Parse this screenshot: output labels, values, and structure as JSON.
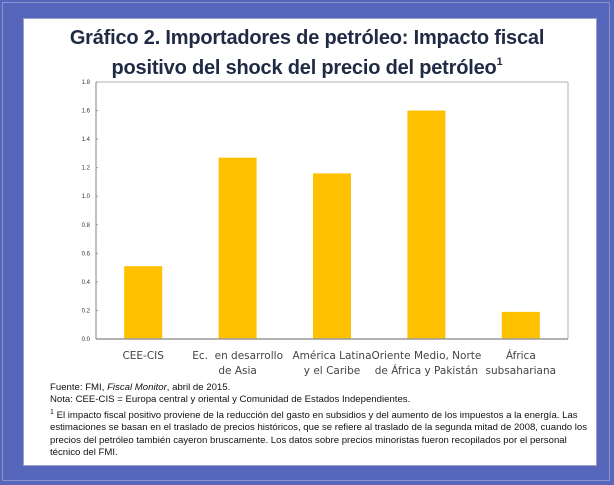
{
  "title": {
    "line1": "Gráfico 2. Importadores de petróleo: Impacto fiscal",
    "line2": "positivo del shock del precio del petróleo",
    "footnote_mark": "1"
  },
  "colors": {
    "bar": "#ffc000",
    "frame": "#5566bb",
    "axis": "#999999"
  },
  "chart_data": {
    "type": "bar",
    "title": "Gráfico 2. Importadores de petróleo: Impacto fiscal positivo del shock del precio del petróleo",
    "categories": [
      [
        "CEE-CIS"
      ],
      [
        "Ec.  en desarrollo",
        "de Asia"
      ],
      [
        "América Latina",
        "y el Caribe"
      ],
      [
        "Oriente Medio, Norte",
        "de África y Pakistán"
      ],
      [
        "África",
        "subsahariana"
      ]
    ],
    "values": [
      0.51,
      1.27,
      1.16,
      1.6,
      0.19
    ],
    "ylim": [
      0,
      1.8
    ],
    "yticks": [
      "0.0",
      "0.2",
      "0.4",
      "0.6",
      "0.8",
      "1.0",
      "1.2",
      "1.4",
      "1.6",
      "1.8"
    ],
    "xlabel": "",
    "ylabel": "",
    "grid": false
  },
  "notes": {
    "source_prefix": "Fuente: FMI, ",
    "source_italic": "Fiscal Monitor",
    "source_suffix": ", abril de 2015.",
    "note": "Nota: CEE-CIS = Europa central y oriental y Comunidad de Estados Independientes.",
    "footnote_mark": "1",
    "footnote": " El impacto fiscal positivo proviene de la reducción del gasto en subsidios y del aumento de los impuestos a la energía. Las estimaciones se basan en el traslado de precios históricos, que se refiere al traslado de la segunda mitad de 2008, cuando los precios del petróleo también cayeron bruscamente. Los datos sobre precios minoristas fueron recopilados por el personal técnico del FMI."
  }
}
